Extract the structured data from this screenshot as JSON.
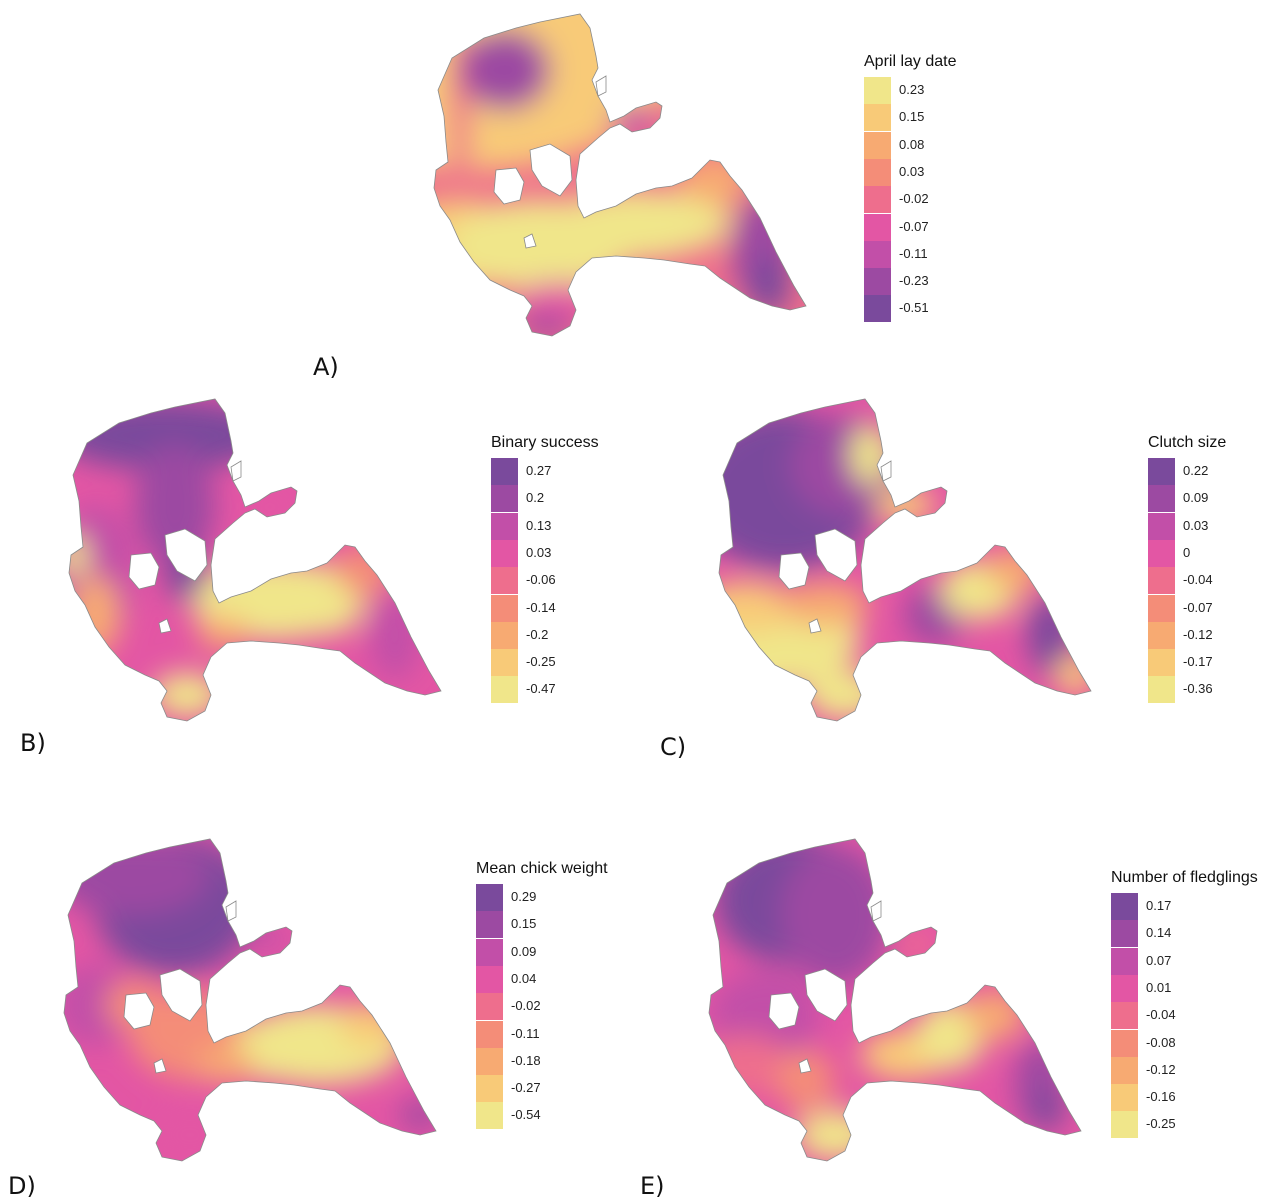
{
  "colors": [
    "#f0e68a",
    "#f8ca78",
    "#f7aa72",
    "#f48d78",
    "#ee6e8d",
    "#e356a4",
    "#c24fa8",
    "#9c4aa2",
    "#7a4a9c"
  ],
  "panels": [
    {
      "id": "A",
      "letter": "A)",
      "legend_title": "April lay date",
      "legend_order": "ascending",
      "legend_values": [
        "0.23",
        "0.15",
        "0.08",
        "0.03",
        "-0.02",
        "-0.07",
        "-0.11",
        "-0.23",
        "-0.51"
      ]
    },
    {
      "id": "B",
      "letter": "B)",
      "legend_title": "Binary success",
      "legend_order": "descending",
      "legend_values": [
        "0.27",
        "0.2",
        "0.13",
        "0.03",
        "-0.06",
        "-0.14",
        "-0.2",
        "-0.25",
        "-0.47"
      ]
    },
    {
      "id": "C",
      "letter": "C)",
      "legend_title": "Clutch size",
      "legend_order": "descending",
      "legend_values": [
        "0.22",
        "0.09",
        "0.03",
        "0",
        "-0.04",
        "-0.07",
        "-0.12",
        "-0.17",
        "-0.36"
      ]
    },
    {
      "id": "D",
      "letter": "D)",
      "legend_title": "Mean chick weight",
      "legend_order": "descending",
      "legend_values": [
        "0.29",
        "0.15",
        "0.09",
        "0.04",
        "-0.02",
        "-0.11",
        "-0.18",
        "-0.27",
        "-0.54"
      ]
    },
    {
      "id": "E",
      "letter": "E)",
      "legend_title": "Number of fledglings",
      "legend_order": "descending",
      "legend_values": [
        "0.17",
        "0.14",
        "0.07",
        "0.01",
        "-0.04",
        "-0.08",
        "-0.12",
        "-0.16",
        "-0.25"
      ]
    }
  ]
}
